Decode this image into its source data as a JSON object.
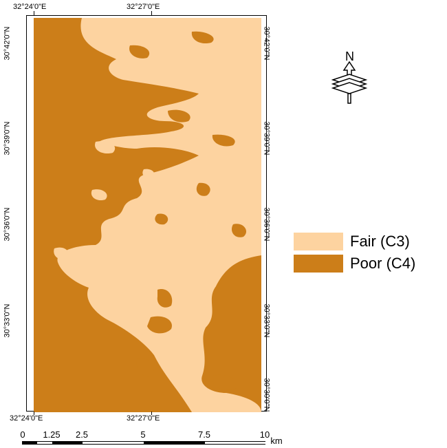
{
  "colors": {
    "fair": "#fdd3a0",
    "poor": "#cc7e19"
  },
  "coordinates": {
    "top": [
      "32°24'0\"E",
      "32°27'0\"E"
    ],
    "bottom": [
      "32°24'0\"E",
      "32°27'0\"E"
    ],
    "left": [
      "30°42'0\"N",
      "30°39'0\"N",
      "30°36'0\"N",
      "30°33'0\"N"
    ],
    "right": [
      "30°42'0\"N",
      "30°39'0\"N",
      "30°36'0\"N",
      "30°33'0\"N",
      "30°30'0\"N"
    ]
  },
  "legend": {
    "items": [
      {
        "label": "Fair (C3)"
      },
      {
        "label": "Poor (C4)"
      }
    ]
  },
  "north_arrow": {
    "label": "N",
    "icon": "north-arrow-icon"
  },
  "scale_bar": {
    "labels": [
      "0",
      "1.25",
      "2.5",
      "5",
      "7.5",
      "10"
    ],
    "unit": "km"
  }
}
